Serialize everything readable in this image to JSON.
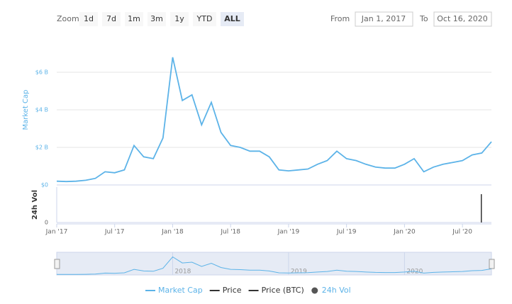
{
  "toolbar": {
    "zoom_label": "Zoom",
    "buttons": [
      "1d",
      "7d",
      "1m",
      "3m",
      "1y",
      "YTD",
      "ALL"
    ],
    "active_button": "ALL",
    "from_label": "From",
    "from_value": "Jan 1, 2017",
    "to_label": "To",
    "to_value": "Oct 16, 2020"
  },
  "chart_data": {
    "type": "line",
    "ylabel": "Market Cap",
    "x": [
      "2017-01",
      "2017-02",
      "2017-03",
      "2017-04",
      "2017-05",
      "2017-06",
      "2017-07",
      "2017-08",
      "2017-09",
      "2017-10",
      "2017-11",
      "2017-12",
      "2018-01",
      "2018-02",
      "2018-03",
      "2018-04",
      "2018-05",
      "2018-06",
      "2018-07",
      "2018-08",
      "2018-09",
      "2018-10",
      "2018-11",
      "2018-12",
      "2019-01",
      "2019-02",
      "2019-03",
      "2019-04",
      "2019-05",
      "2019-06",
      "2019-07",
      "2019-08",
      "2019-09",
      "2019-10",
      "2019-11",
      "2019-12",
      "2020-01",
      "2020-02",
      "2020-03",
      "2020-04",
      "2020-05",
      "2020-06",
      "2020-07",
      "2020-08",
      "2020-09",
      "2020-10"
    ],
    "series": [
      {
        "name": "Market Cap",
        "color": "#5cb3e8",
        "values": [
          200000000,
          180000000,
          200000000,
          250000000,
          350000000,
          700000000,
          650000000,
          800000000,
          2100000000,
          1500000000,
          1400000000,
          2500000000,
          6800000000,
          4500000000,
          4800000000,
          3200000000,
          4400000000,
          2800000000,
          2100000000,
          2000000000,
          1800000000,
          1800000000,
          1500000000,
          800000000,
          750000000,
          800000000,
          850000000,
          1100000000,
          1300000000,
          1800000000,
          1400000000,
          1300000000,
          1100000000,
          950000000,
          900000000,
          900000000,
          1100000000,
          1400000000,
          700000000,
          950000000,
          1100000000,
          1200000000,
          1300000000,
          1600000000,
          1700000000,
          2300000000
        ]
      }
    ],
    "ylim": [
      0,
      8000000000
    ],
    "yticks": [
      {
        "value": 0,
        "label": "$0"
      },
      {
        "value": 2000000000,
        "label": "$2 B"
      },
      {
        "value": 4000000000,
        "label": "$4 B"
      },
      {
        "value": 6000000000,
        "label": "$6 B"
      }
    ],
    "xticks": [
      {
        "value": "2017-01",
        "label": "Jan '17"
      },
      {
        "value": "2017-07",
        "label": "Jul '17"
      },
      {
        "value": "2018-01",
        "label": "Jan '18"
      },
      {
        "value": "2018-07",
        "label": "Jul '18"
      },
      {
        "value": "2019-01",
        "label": "Jan '19"
      },
      {
        "value": "2019-07",
        "label": "Jul '19"
      },
      {
        "value": "2020-01",
        "label": "Jan '20"
      },
      {
        "value": "2020-07",
        "label": "Jul '20"
      }
    ],
    "volume": {
      "name": "24h Vol",
      "color": "#333333",
      "ylabel": "24h Vol",
      "ylim": [
        0,
        100000000
      ],
      "yticks": [
        0
      ],
      "values": [
        0,
        0,
        0,
        0,
        0,
        0,
        0,
        0,
        0,
        0,
        0,
        0,
        0,
        0,
        0,
        0,
        0,
        0,
        0,
        0,
        0,
        0,
        0,
        0,
        0,
        0,
        0,
        0,
        0,
        0,
        0,
        0,
        0,
        0,
        0,
        0,
        0,
        0,
        0,
        0,
        0,
        0,
        0,
        0,
        0,
        80000000
      ]
    },
    "navigator_ticks": [
      {
        "value": "2018-01",
        "label": "2018"
      },
      {
        "value": "2019-01",
        "label": "2019"
      },
      {
        "value": "2020-01",
        "label": "2020"
      }
    ],
    "legend": [
      {
        "name": "Market Cap",
        "color": "#5cb3e8"
      },
      {
        "name": "Price",
        "color": "#333333"
      },
      {
        "name": "Price (BTC)",
        "color": "#333333"
      },
      {
        "name": "24h Vol",
        "color": "#555555"
      }
    ]
  }
}
